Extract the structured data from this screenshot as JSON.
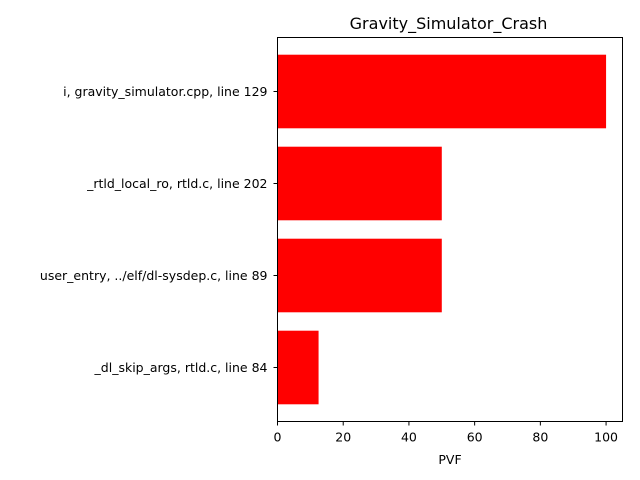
{
  "chart_data": {
    "type": "bar",
    "orientation": "horizontal",
    "title": "Gravity_Simulator_Crash",
    "xlabel": "PVF",
    "ylabel": "",
    "xlim": [
      0,
      105
    ],
    "xticks": [
      0,
      20,
      40,
      60,
      80,
      100
    ],
    "grid": false,
    "bar_color": "#ff0000",
    "categories": [
      "i, gravity_simulator.cpp, line 129",
      "_rtld_local_ro, rtld.c, line 202",
      "user_entry, ../elf/dl-sysdep.c, line 89",
      "_dl_skip_args, rtld.c, line 84"
    ],
    "values": [
      100,
      50,
      50,
      12.5
    ]
  }
}
